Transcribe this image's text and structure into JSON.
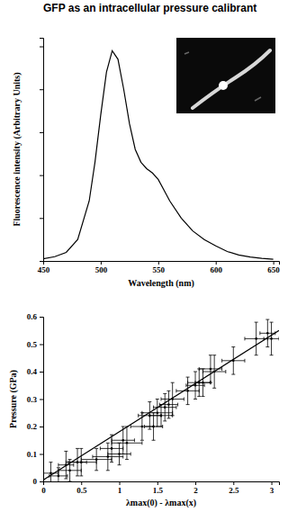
{
  "chart_data": [
    {
      "type": "line",
      "title": "GFP as an intracellular pressure calibrant",
      "x_label": "Wavelength (nm)",
      "y_label": "Fluorescence intensity (Arbitrary Units)",
      "x": [
        450,
        460,
        470,
        480,
        490,
        495,
        500,
        505,
        510,
        515,
        520,
        525,
        530,
        535,
        540,
        545,
        550,
        555,
        560,
        570,
        580,
        590,
        600,
        610,
        620,
        630,
        640,
        650
      ],
      "values": [
        0.05,
        0.1,
        0.2,
        0.5,
        1.4,
        2.3,
        3.4,
        4.4,
        4.9,
        4.7,
        4.0,
        3.2,
        2.6,
        2.3,
        2.15,
        2.05,
        1.9,
        1.65,
        1.4,
        1.0,
        0.7,
        0.5,
        0.35,
        0.22,
        0.14,
        0.09,
        0.06,
        0.04
      ],
      "color": "#000000",
      "xlim": [
        450,
        655
      ],
      "xticks": [
        450,
        500,
        550,
        600,
        650
      ],
      "ylim": [
        0,
        5.2
      ],
      "yticks": [
        0,
        1,
        2,
        3,
        4,
        5
      ],
      "tick_labels": "x"
    },
    {
      "type": "scatter",
      "x_label": "λmax(0) - λmax(x)",
      "y_label": "Pressure (GPa)",
      "color": "#000000",
      "xlim": [
        0,
        3.1
      ],
      "xticks": [
        0,
        0.5,
        1,
        1.5,
        2,
        2.5,
        3
      ],
      "ylim": [
        0,
        0.6
      ],
      "yticks": [
        0,
        0.1,
        0.2,
        0.3,
        0.4,
        0.5,
        0.6
      ],
      "series": [
        {
          "type": "scatter",
          "x": [
            0.1,
            0.2,
            0.3,
            0.35,
            0.45,
            0.5,
            0.7,
            0.85,
            0.9,
            1.0,
            1.05,
            1.1,
            1.3,
            1.4,
            1.45,
            1.5,
            1.55,
            1.6,
            1.65,
            1.7,
            1.9,
            2.0,
            2.05,
            2.1,
            2.2,
            2.25,
            2.5,
            2.8,
            2.95,
            3.0
          ],
          "values": [
            0.03,
            0.02,
            0.06,
            0.04,
            0.07,
            0.07,
            0.08,
            0.09,
            0.12,
            0.1,
            0.15,
            0.14,
            0.2,
            0.24,
            0.2,
            0.25,
            0.24,
            0.27,
            0.28,
            0.3,
            0.33,
            0.35,
            0.36,
            0.36,
            0.41,
            0.4,
            0.44,
            0.52,
            0.54,
            0.52
          ],
          "x_error": [
            0.1,
            0.12,
            0.1,
            0.15,
            0.12,
            0.2,
            0.2,
            0.2,
            0.15,
            0.15,
            0.15,
            0.2,
            0.15,
            0.15,
            0.12,
            0.2,
            0.15,
            0.15,
            0.12,
            0.15,
            0.15,
            0.12,
            0.15,
            0.1,
            0.15,
            0.15,
            0.15,
            0.15,
            0.1,
            0.1
          ],
          "y_error": [
            0.04,
            0.03,
            0.05,
            0.04,
            0.05,
            0.05,
            0.04,
            0.05,
            0.05,
            0.04,
            0.05,
            0.06,
            0.05,
            0.05,
            0.05,
            0.05,
            0.04,
            0.05,
            0.05,
            0.06,
            0.05,
            0.05,
            0.05,
            0.05,
            0.05,
            0.06,
            0.05,
            0.06,
            0.05,
            0.06
          ]
        },
        {
          "type": "line",
          "x": [
            0,
            3.1
          ],
          "values": [
            0.005,
            0.55
          ]
        }
      ]
    }
  ]
}
